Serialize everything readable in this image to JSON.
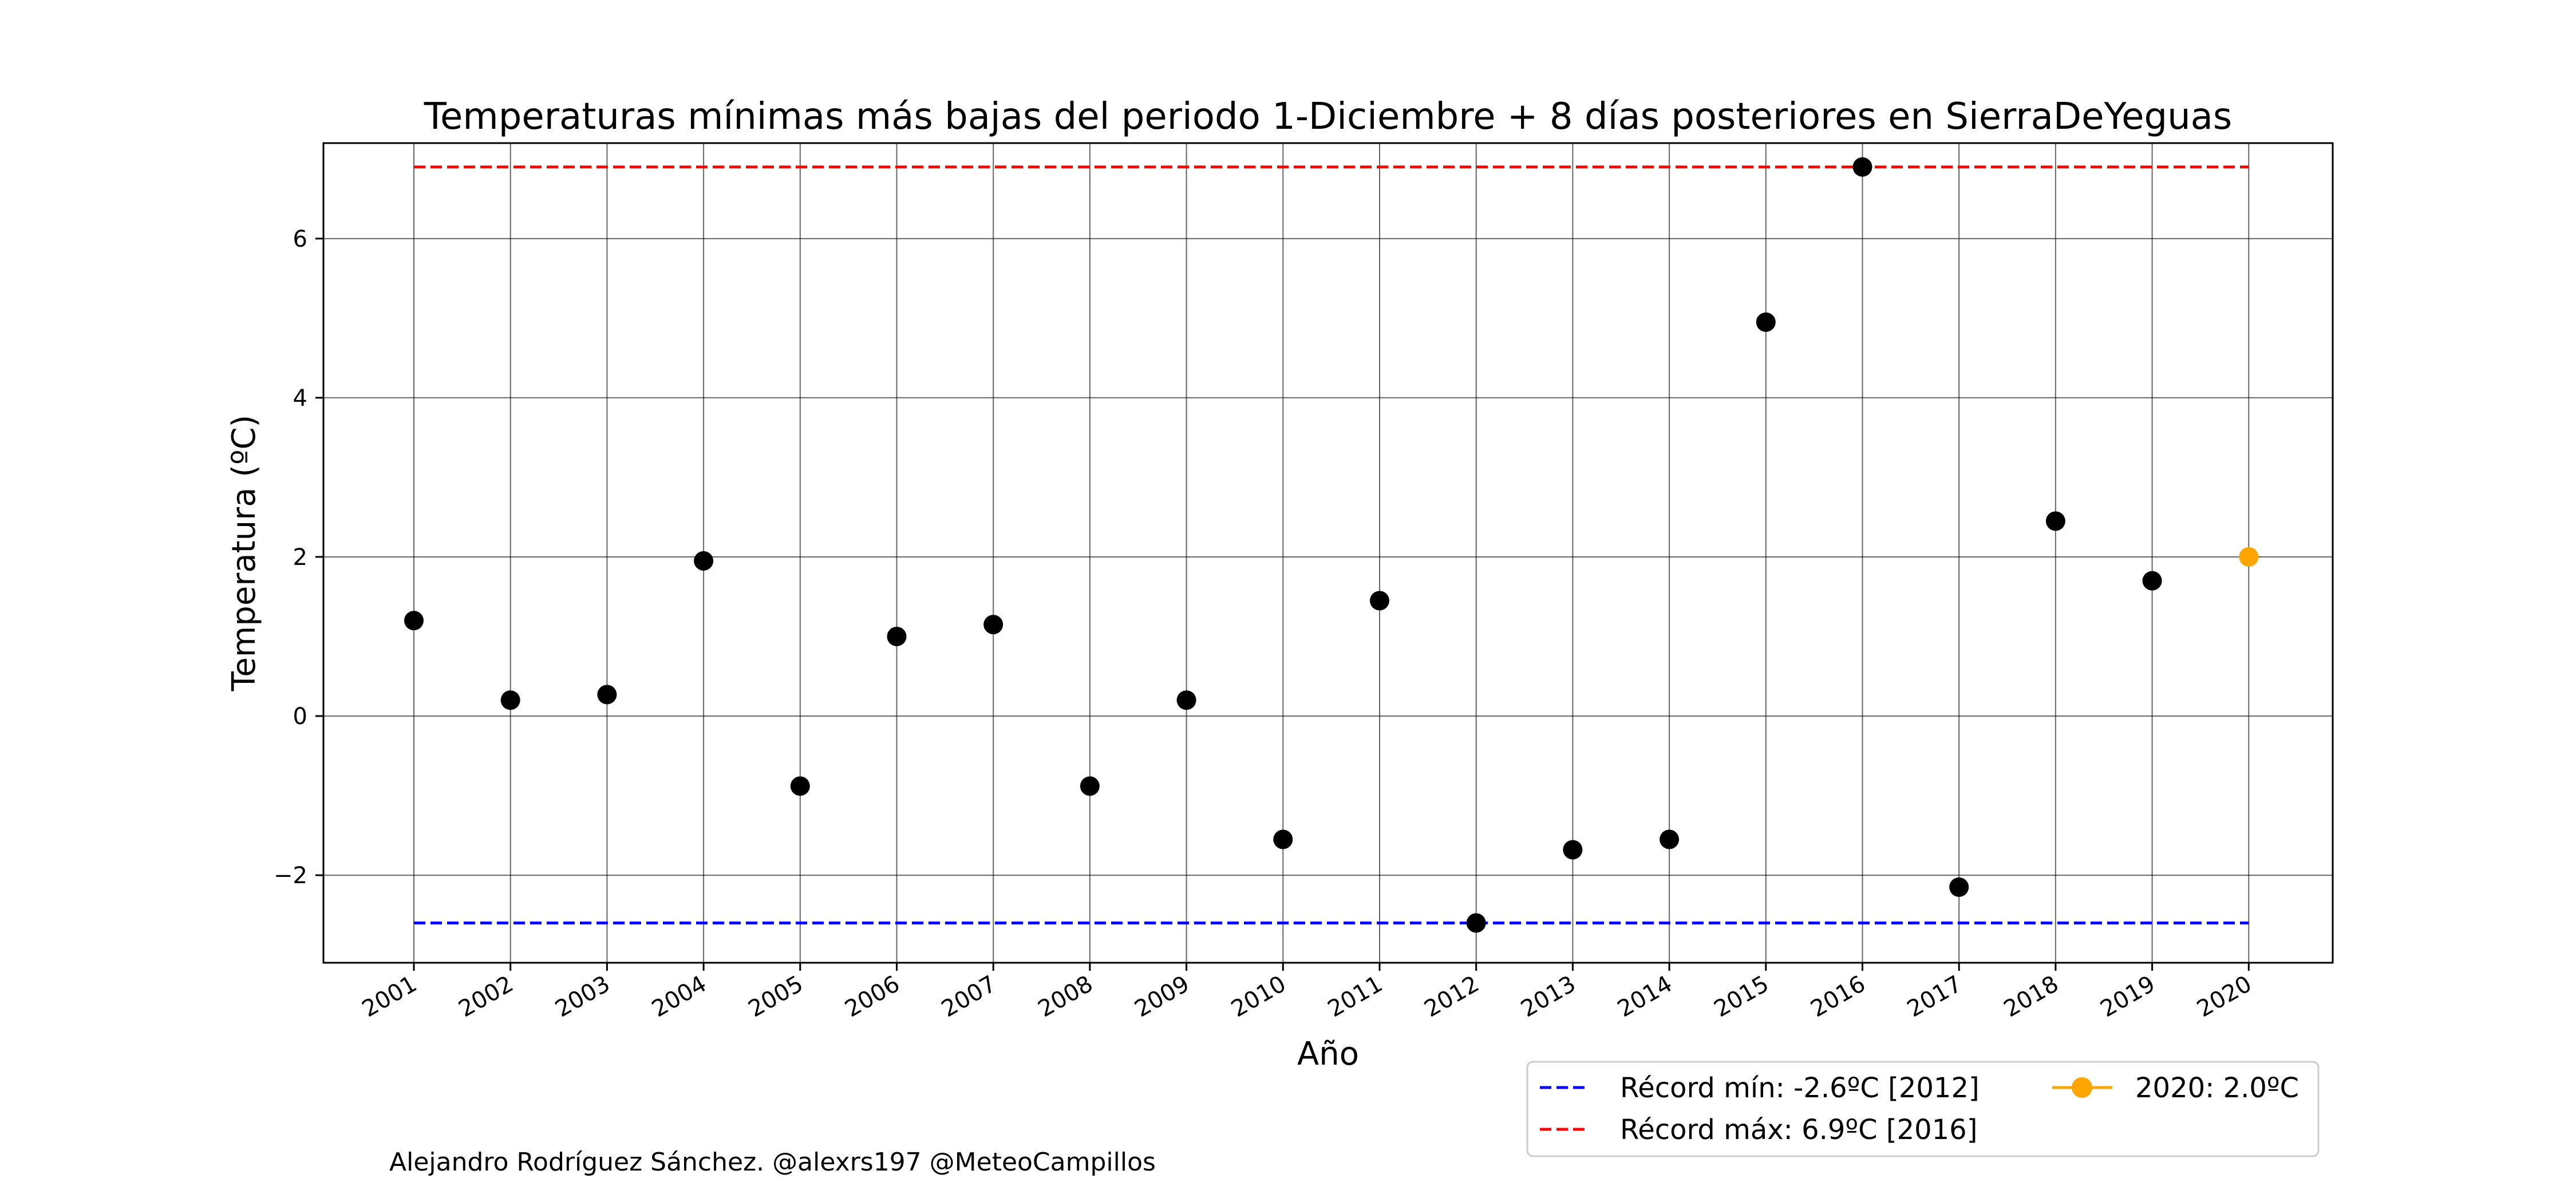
{
  "chart_data": {
    "type": "scatter",
    "title": "Temperaturas mínimas más bajas del periodo 1-Diciembre + 8 días posteriores en SierraDeYeguas",
    "xlabel": "Año",
    "ylabel": "Temperatura (ºC)",
    "x": [
      "2001",
      "2002",
      "2003",
      "2004",
      "2005",
      "2006",
      "2007",
      "2008",
      "2009",
      "2010",
      "2011",
      "2012",
      "2013",
      "2014",
      "2015",
      "2016",
      "2017",
      "2018",
      "2019",
      "2020"
    ],
    "ylim": [
      -3.1,
      7.2
    ],
    "yticks": [
      -2,
      0,
      2,
      4,
      6
    ],
    "ytick_labels": [
      "−2",
      "0",
      "2",
      "4",
      "6"
    ],
    "grid": true,
    "series": [
      {
        "years": [
          "2001",
          "2002",
          "2003",
          "2004",
          "2005",
          "2006",
          "2007",
          "2008",
          "2009",
          "2010",
          "2011",
          "2012",
          "2013",
          "2014",
          "2015",
          "2016",
          "2017",
          "2018",
          "2019"
        ],
        "values": [
          1.2,
          0.2,
          0.27,
          1.95,
          -0.88,
          1.0,
          1.15,
          -0.88,
          0.2,
          -1.55,
          1.45,
          -2.6,
          -1.68,
          -1.55,
          4.95,
          6.9,
          -2.15,
          2.45,
          1.7
        ],
        "color": "#000000"
      },
      {
        "name": "2020: 2.0ºC",
        "years": [
          "2020"
        ],
        "values": [
          2.0
        ],
        "color": "#ffa500"
      }
    ],
    "reference_lines": [
      {
        "name": "Récord mín: -2.6ºC [2012]",
        "value": -2.6,
        "color": "#0000ff",
        "style": "dashed"
      },
      {
        "name": "Récord máx: 6.9ºC [2016]",
        "value": 6.9,
        "color": "#ff0000",
        "style": "dashed"
      }
    ],
    "legend_placement": "bottom-right, below axes",
    "legend_entries": [
      "Récord mín: -2.6ºC [2012]",
      "Récord máx: 6.9ºC [2016]",
      "2020: 2.0ºC"
    ]
  },
  "credit": "Alejandro Rodríguez Sánchez. @alexrs197 @MeteoCampillos"
}
